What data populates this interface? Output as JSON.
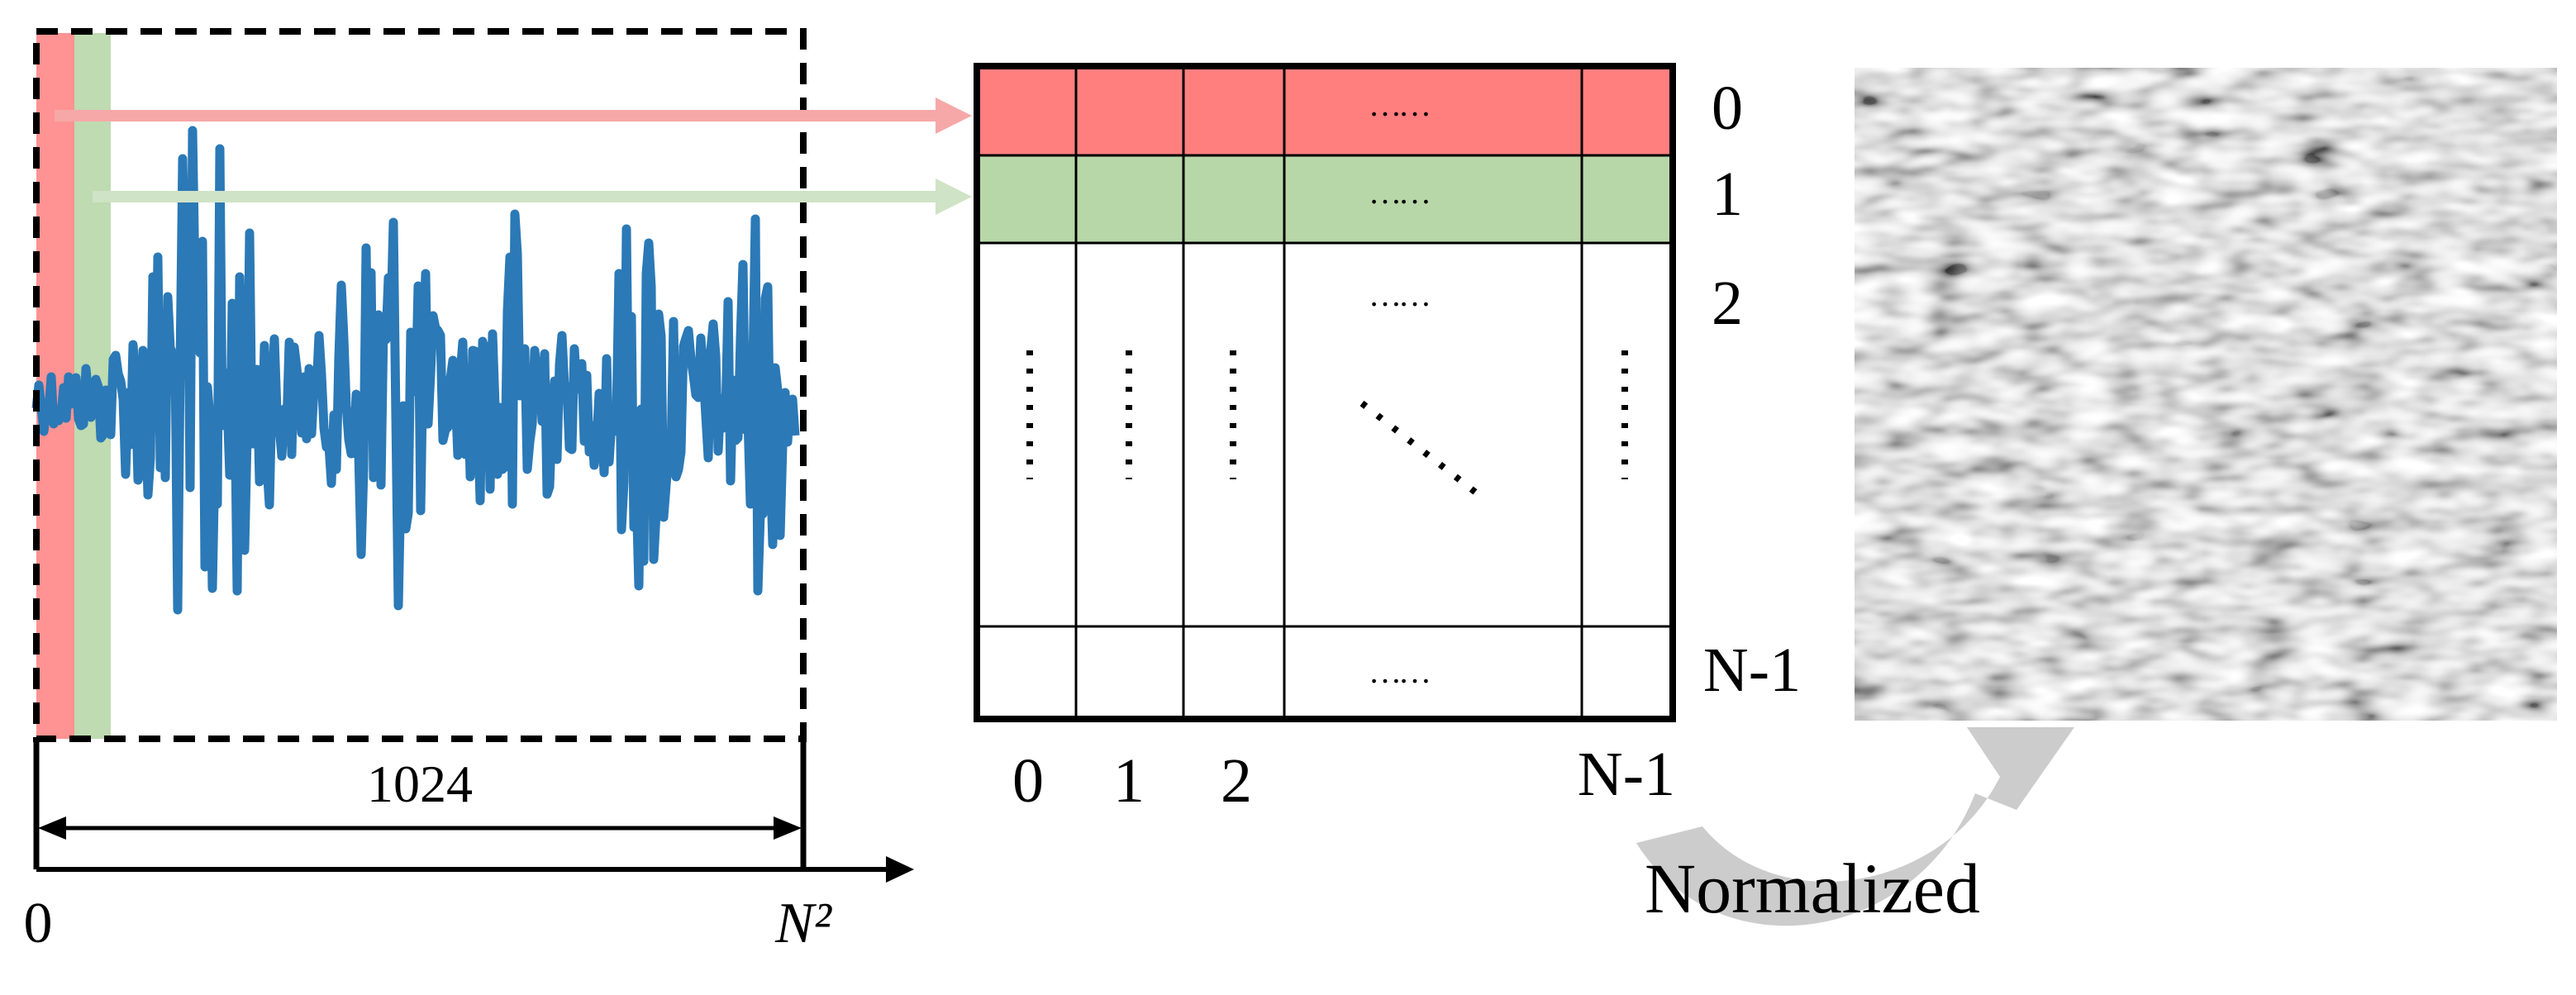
{
  "signal_panel": {
    "width_label": "1024",
    "axis_start_label": "0",
    "axis_end_label": "N²"
  },
  "matrix": {
    "row_labels": [
      "0",
      "1",
      "2",
      "N-1"
    ],
    "col_labels": [
      "0",
      "1",
      "2",
      "N-1"
    ],
    "ellipsis": "……"
  },
  "normalized_label": "Normalized",
  "colors": {
    "waveform": "#2b79b6",
    "row0": "#ff7f7f",
    "row1": "#b7d7a8",
    "arrow_red": "#f6a8a8",
    "arrow_green": "#cfe3c6",
    "curved_arrow": "#cccccc"
  }
}
